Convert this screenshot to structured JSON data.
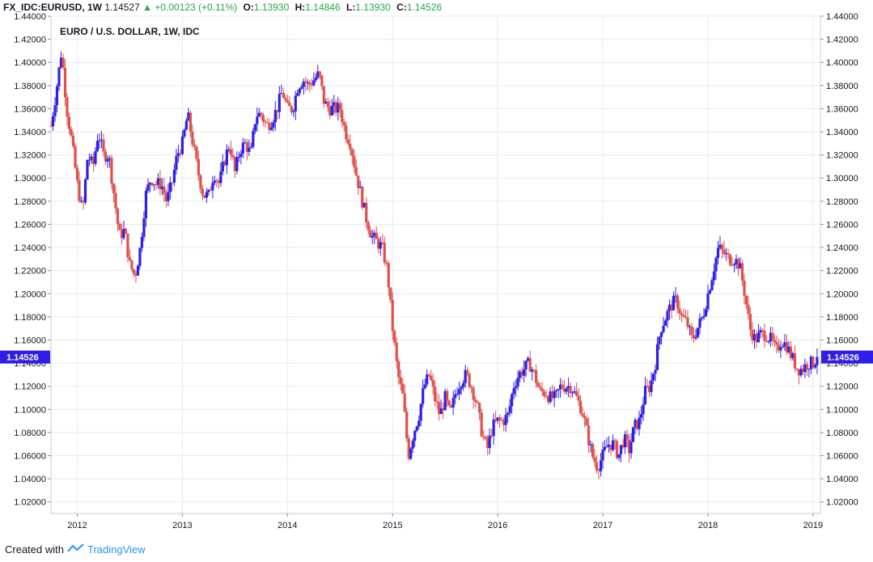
{
  "header": {
    "symbol": "FX_IDC:EURUSD, 1W",
    "last": "1.14527",
    "arrow": "▲",
    "change": "+0.00123 (+0.11%)",
    "o_label": "O:",
    "o_value": "1.13930",
    "h_label": "H:",
    "h_value": "1.14846",
    "l_label": "L:",
    "l_value": "1.13930",
    "c_label": "C:",
    "c_value": "1.14526"
  },
  "footer": {
    "created_with": "Created with",
    "brand": "TradingView"
  },
  "colors": {
    "up": "#2f1ee8",
    "down": "#e0504a",
    "grid": "#e6ebf2",
    "tag": "#2f1ee8",
    "positive_text": "#26a641"
  },
  "chart_data": {
    "type": "candlestick",
    "title": "EURO / U.S. DOLLAR, 1W, IDC",
    "interval": "1W",
    "ylim": [
      1.01,
      1.44
    ],
    "y_ticks": [
      "1.02000",
      "1.04000",
      "1.06000",
      "1.08000",
      "1.10000",
      "1.12000",
      "1.14000",
      "1.16000",
      "1.18000",
      "1.20000",
      "1.22000",
      "1.24000",
      "1.26000",
      "1.28000",
      "1.30000",
      "1.32000",
      "1.34000",
      "1.36000",
      "1.38000",
      "1.40000",
      "1.42000",
      "1.44000"
    ],
    "x_ticks": [
      "2012",
      "2013",
      "2014",
      "2015",
      "2016",
      "2017",
      "2018",
      "2019"
    ],
    "last_price": "1.14526",
    "x_range": [
      2011.75,
      2019.07
    ],
    "closes": [
      [
        2011.75,
        1.345
      ],
      [
        2011.8,
        1.375
      ],
      [
        2011.85,
        1.41
      ],
      [
        2011.9,
        1.36
      ],
      [
        2011.95,
        1.33
      ],
      [
        2012.0,
        1.295
      ],
      [
        2012.05,
        1.27
      ],
      [
        2012.1,
        1.32
      ],
      [
        2012.15,
        1.31
      ],
      [
        2012.2,
        1.34
      ],
      [
        2012.25,
        1.32
      ],
      [
        2012.3,
        1.32
      ],
      [
        2012.35,
        1.285
      ],
      [
        2012.4,
        1.25
      ],
      [
        2012.45,
        1.255
      ],
      [
        2012.5,
        1.225
      ],
      [
        2012.55,
        1.215
      ],
      [
        2012.6,
        1.24
      ],
      [
        2012.65,
        1.285
      ],
      [
        2012.7,
        1.3
      ],
      [
        2012.75,
        1.295
      ],
      [
        2012.8,
        1.295
      ],
      [
        2012.85,
        1.28
      ],
      [
        2012.9,
        1.295
      ],
      [
        2012.95,
        1.32
      ],
      [
        2013.0,
        1.33
      ],
      [
        2013.05,
        1.355
      ],
      [
        2013.1,
        1.33
      ],
      [
        2013.15,
        1.305
      ],
      [
        2013.2,
        1.285
      ],
      [
        2013.25,
        1.285
      ],
      [
        2013.3,
        1.305
      ],
      [
        2013.35,
        1.295
      ],
      [
        2013.4,
        1.315
      ],
      [
        2013.45,
        1.33
      ],
      [
        2013.5,
        1.305
      ],
      [
        2013.55,
        1.325
      ],
      [
        2013.6,
        1.33
      ],
      [
        2013.65,
        1.32
      ],
      [
        2013.7,
        1.355
      ],
      [
        2013.75,
        1.355
      ],
      [
        2013.8,
        1.345
      ],
      [
        2013.85,
        1.35
      ],
      [
        2013.9,
        1.36
      ],
      [
        2013.95,
        1.375
      ],
      [
        2014.0,
        1.36
      ],
      [
        2014.05,
        1.36
      ],
      [
        2014.1,
        1.38
      ],
      [
        2014.15,
        1.385
      ],
      [
        2014.2,
        1.38
      ],
      [
        2014.25,
        1.385
      ],
      [
        2014.3,
        1.39
      ],
      [
        2014.35,
        1.365
      ],
      [
        2014.4,
        1.36
      ],
      [
        2014.45,
        1.36
      ],
      [
        2014.5,
        1.36
      ],
      [
        2014.55,
        1.34
      ],
      [
        2014.6,
        1.33
      ],
      [
        2014.65,
        1.305
      ],
      [
        2014.7,
        1.285
      ],
      [
        2014.75,
        1.265
      ],
      [
        2014.8,
        1.25
      ],
      [
        2014.85,
        1.245
      ],
      [
        2014.9,
        1.24
      ],
      [
        2014.95,
        1.22
      ],
      [
        2015.0,
        1.17
      ],
      [
        2015.05,
        1.13
      ],
      [
        2015.1,
        1.11
      ],
      [
        2015.15,
        1.06
      ],
      [
        2015.2,
        1.08
      ],
      [
        2015.25,
        1.095
      ],
      [
        2015.3,
        1.12
      ],
      [
        2015.35,
        1.13
      ],
      [
        2015.4,
        1.11
      ],
      [
        2015.45,
        1.095
      ],
      [
        2015.5,
        1.11
      ],
      [
        2015.55,
        1.095
      ],
      [
        2015.6,
        1.115
      ],
      [
        2015.65,
        1.125
      ],
      [
        2015.7,
        1.13
      ],
      [
        2015.75,
        1.12
      ],
      [
        2015.8,
        1.105
      ],
      [
        2015.85,
        1.08
      ],
      [
        2015.9,
        1.065
      ],
      [
        2015.95,
        1.085
      ],
      [
        2016.0,
        1.09
      ],
      [
        2016.05,
        1.09
      ],
      [
        2016.1,
        1.095
      ],
      [
        2016.15,
        1.12
      ],
      [
        2016.2,
        1.13
      ],
      [
        2016.25,
        1.135
      ],
      [
        2016.3,
        1.14
      ],
      [
        2016.35,
        1.13
      ],
      [
        2016.4,
        1.115
      ],
      [
        2016.45,
        1.115
      ],
      [
        2016.5,
        1.11
      ],
      [
        2016.55,
        1.11
      ],
      [
        2016.6,
        1.12
      ],
      [
        2016.65,
        1.12
      ],
      [
        2016.7,
        1.12
      ],
      [
        2016.75,
        1.11
      ],
      [
        2016.8,
        1.1
      ],
      [
        2016.85,
        1.08
      ],
      [
        2016.9,
        1.06
      ],
      [
        2016.95,
        1.05
      ],
      [
        2017.0,
        1.06
      ],
      [
        2017.05,
        1.07
      ],
      [
        2017.1,
        1.07
      ],
      [
        2017.15,
        1.06
      ],
      [
        2017.2,
        1.075
      ],
      [
        2017.25,
        1.065
      ],
      [
        2017.3,
        1.085
      ],
      [
        2017.35,
        1.09
      ],
      [
        2017.4,
        1.115
      ],
      [
        2017.45,
        1.12
      ],
      [
        2017.5,
        1.14
      ],
      [
        2017.55,
        1.17
      ],
      [
        2017.6,
        1.18
      ],
      [
        2017.65,
        1.19
      ],
      [
        2017.7,
        1.195
      ],
      [
        2017.75,
        1.18
      ],
      [
        2017.8,
        1.175
      ],
      [
        2017.85,
        1.16
      ],
      [
        2017.9,
        1.17
      ],
      [
        2017.95,
        1.18
      ],
      [
        2018.0,
        1.2
      ],
      [
        2018.05,
        1.22
      ],
      [
        2018.1,
        1.24
      ],
      [
        2018.15,
        1.235
      ],
      [
        2018.2,
        1.23
      ],
      [
        2018.25,
        1.23
      ],
      [
        2018.3,
        1.225
      ],
      [
        2018.35,
        1.2
      ],
      [
        2018.4,
        1.17
      ],
      [
        2018.45,
        1.16
      ],
      [
        2018.5,
        1.165
      ],
      [
        2018.55,
        1.165
      ],
      [
        2018.6,
        1.16
      ],
      [
        2018.65,
        1.15
      ],
      [
        2018.7,
        1.16
      ],
      [
        2018.75,
        1.155
      ],
      [
        2018.8,
        1.145
      ],
      [
        2018.85,
        1.135
      ],
      [
        2018.9,
        1.135
      ],
      [
        2018.95,
        1.14
      ],
      [
        2019.0,
        1.14
      ],
      [
        2019.04,
        1.145
      ]
    ]
  }
}
